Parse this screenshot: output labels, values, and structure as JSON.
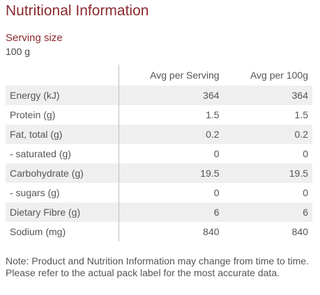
{
  "title": "Nutritional Information",
  "serving": {
    "label": "Serving size",
    "value": "100 g"
  },
  "table": {
    "headers": {
      "label": "",
      "per_serving": "Avg per Serving",
      "per_100g": "Avg per 100g"
    },
    "rows": [
      {
        "label": "Energy (kJ)",
        "per_serving": "364",
        "per_100g": "364"
      },
      {
        "label": "Protein (g)",
        "per_serving": "1.5",
        "per_100g": "1.5"
      },
      {
        "label": "Fat, total (g)",
        "per_serving": "0.2",
        "per_100g": "0.2"
      },
      {
        "label": "- saturated (g)",
        "per_serving": "0",
        "per_100g": "0"
      },
      {
        "label": "Carbohydrate (g)",
        "per_serving": "19.5",
        "per_100g": "19.5"
      },
      {
        "label": "- sugars (g)",
        "per_serving": "0",
        "per_100g": "0"
      },
      {
        "label": "Dietary Fibre (g)",
        "per_serving": "6",
        "per_100g": "6"
      },
      {
        "label": "Sodium (mg)",
        "per_serving": "840",
        "per_100g": "840"
      }
    ]
  },
  "note": "Note: Product and Nutrition Information may change from time to time. Please refer to the actual pack label for the most accurate data.",
  "colors": {
    "heading": "#8a2a2f",
    "row_shade": "#efefef"
  }
}
